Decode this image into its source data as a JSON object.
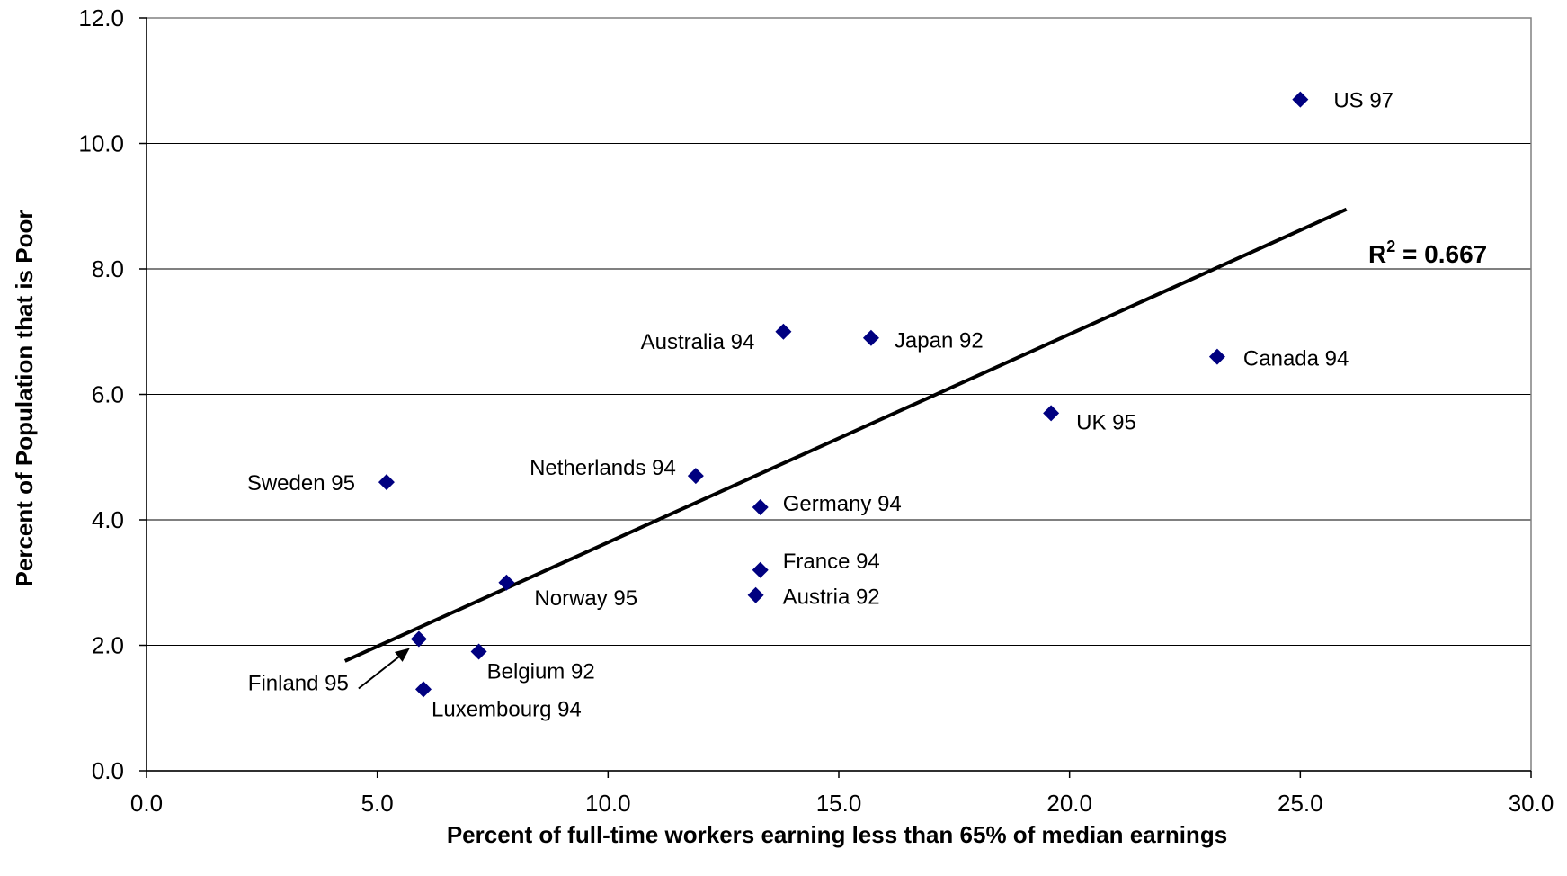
{
  "chart_data": {
    "type": "scatter",
    "title": "",
    "xlabel": "Percent of full-time workers earning less than 65% of median earnings",
    "ylabel": "Percent of Population that is Poor",
    "xlim": [
      0,
      30
    ],
    "ylim": [
      0,
      12
    ],
    "x_ticks": [
      0,
      5,
      10,
      15,
      20,
      25,
      30
    ],
    "y_ticks": [
      0,
      2,
      4,
      6,
      8,
      10,
      12
    ],
    "x_tick_labels": [
      "0.0",
      "5.0",
      "10.0",
      "15.0",
      "20.0",
      "25.0",
      "30.0"
    ],
    "y_tick_labels": [
      "0.0",
      "2.0",
      "4.0",
      "6.0",
      "8.0",
      "10.0",
      "12.0"
    ],
    "grid": "horizontal",
    "marker": "diamond",
    "marker_color": "#000080",
    "points": [
      {
        "label": "US 97",
        "x": 25.0,
        "y": 10.7
      },
      {
        "label": "Canada 94",
        "x": 23.2,
        "y": 6.6
      },
      {
        "label": "UK 95",
        "x": 19.6,
        "y": 5.7
      },
      {
        "label": "Japan 92",
        "x": 15.7,
        "y": 6.9
      },
      {
        "label": "Australia 94",
        "x": 13.8,
        "y": 7.0
      },
      {
        "label": "Netherlands 94",
        "x": 11.9,
        "y": 4.7
      },
      {
        "label": "Germany 94",
        "x": 13.3,
        "y": 4.2
      },
      {
        "label": "France 94",
        "x": 13.3,
        "y": 3.2
      },
      {
        "label": "Austria 92",
        "x": 13.2,
        "y": 2.8
      },
      {
        "label": "Norway 95",
        "x": 7.8,
        "y": 3.0
      },
      {
        "label": "Sweden 95",
        "x": 5.2,
        "y": 4.6
      },
      {
        "label": "Belgium 92",
        "x": 7.2,
        "y": 1.9
      },
      {
        "label": "Finland 95",
        "x": 5.9,
        "y": 2.1
      },
      {
        "label": "Luxembourg 94",
        "x": 6.0,
        "y": 1.3
      }
    ],
    "trendline": {
      "type": "linear",
      "x": [
        4.3,
        26.0
      ],
      "y": [
        1.75,
        8.95
      ],
      "color": "#000000"
    },
    "r_squared_label": {
      "base": "R",
      "superscript": "2",
      "text": " = 0.667"
    }
  }
}
